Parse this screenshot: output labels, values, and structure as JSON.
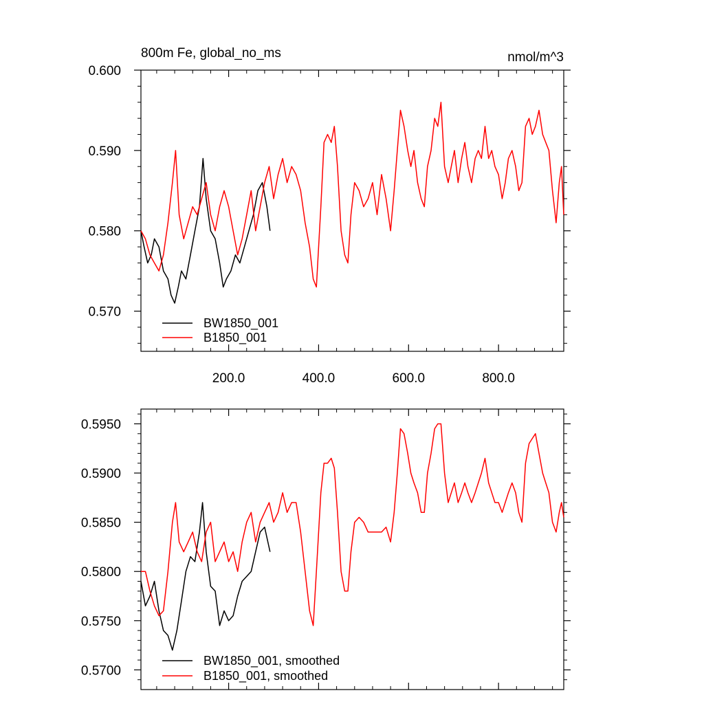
{
  "chart_data": [
    {
      "type": "line",
      "title": "800m Fe, global_no_ms",
      "units": "nmol/m^3",
      "xlim": [
        5,
        945
      ],
      "ylim": [
        0.565,
        0.6
      ],
      "xticks": [
        200,
        400,
        600,
        800
      ],
      "xtick_labels": [
        "200.0",
        "400.0",
        "600.0",
        "800.0"
      ],
      "yticks": [
        0.57,
        0.58,
        0.59,
        0.6
      ],
      "ytick_labels": [
        "0.570",
        "0.580",
        "0.590",
        "0.600"
      ],
      "grid": false,
      "legend_position": "bottom-left",
      "series": [
        {
          "name": "BW1850_001",
          "color": "#000000",
          "x": [
            5,
            12,
            20,
            28,
            35,
            45,
            55,
            65,
            72,
            80,
            88,
            95,
            105,
            115,
            125,
            135,
            143,
            150,
            160,
            170,
            180,
            188,
            195,
            205,
            215,
            225,
            235,
            245,
            255,
            265,
            275,
            285,
            292
          ],
          "values": [
            0.58,
            0.578,
            0.576,
            0.577,
            0.579,
            0.578,
            0.575,
            0.574,
            0.572,
            0.571,
            0.573,
            0.575,
            0.574,
            0.577,
            0.58,
            0.583,
            0.589,
            0.584,
            0.58,
            0.579,
            0.576,
            0.573,
            0.574,
            0.575,
            0.577,
            0.576,
            0.578,
            0.58,
            0.582,
            0.585,
            0.586,
            0.583,
            0.58
          ]
        },
        {
          "name": "B1850_001",
          "color": "#ff0000",
          "x": [
            5,
            15,
            25,
            35,
            45,
            55,
            65,
            75,
            82,
            90,
            100,
            110,
            120,
            130,
            140,
            150,
            160,
            170,
            180,
            190,
            200,
            210,
            220,
            230,
            240,
            250,
            260,
            270,
            280,
            290,
            300,
            310,
            320,
            330,
            340,
            350,
            360,
            370,
            380,
            388,
            395,
            405,
            412,
            420,
            428,
            435,
            442,
            450,
            458,
            465,
            472,
            480,
            490,
            500,
            510,
            520,
            530,
            540,
            550,
            560,
            568,
            575,
            582,
            590,
            598,
            605,
            612,
            620,
            628,
            635,
            642,
            650,
            658,
            665,
            672,
            680,
            688,
            695,
            702,
            710,
            718,
            725,
            732,
            740,
            748,
            755,
            762,
            770,
            778,
            785,
            792,
            800,
            808,
            815,
            822,
            830,
            838,
            845,
            852,
            860,
            868,
            875,
            882,
            890,
            898,
            905,
            912,
            920,
            928,
            935,
            940,
            945
          ],
          "values": [
            0.58,
            0.579,
            0.577,
            0.576,
            0.575,
            0.577,
            0.581,
            0.586,
            0.59,
            0.582,
            0.579,
            0.581,
            0.583,
            0.582,
            0.584,
            0.586,
            0.582,
            0.58,
            0.583,
            0.585,
            0.583,
            0.58,
            0.577,
            0.579,
            0.582,
            0.585,
            0.58,
            0.583,
            0.586,
            0.588,
            0.584,
            0.587,
            0.589,
            0.586,
            0.588,
            0.587,
            0.585,
            0.581,
            0.578,
            0.574,
            0.573,
            0.583,
            0.591,
            0.592,
            0.591,
            0.593,
            0.588,
            0.58,
            0.577,
            0.576,
            0.582,
            0.586,
            0.585,
            0.583,
            0.584,
            0.586,
            0.582,
            0.587,
            0.584,
            0.58,
            0.585,
            0.59,
            0.595,
            0.593,
            0.59,
            0.588,
            0.59,
            0.586,
            0.584,
            0.583,
            0.588,
            0.59,
            0.594,
            0.593,
            0.596,
            0.588,
            0.586,
            0.588,
            0.59,
            0.586,
            0.589,
            0.591,
            0.588,
            0.586,
            0.589,
            0.59,
            0.589,
            0.593,
            0.589,
            0.59,
            0.588,
            0.587,
            0.584,
            0.586,
            0.589,
            0.59,
            0.588,
            0.585,
            0.586,
            0.593,
            0.594,
            0.592,
            0.593,
            0.595,
            0.592,
            0.591,
            0.59,
            0.585,
            0.581,
            0.586,
            0.588,
            0.582
          ]
        }
      ]
    },
    {
      "type": "line",
      "xlim": [
        5,
        945
      ],
      "ylim": [
        0.568,
        0.5965
      ],
      "xticks": [
        200,
        400,
        600,
        800
      ],
      "yticks": [
        0.57,
        0.575,
        0.58,
        0.585,
        0.59,
        0.595
      ],
      "ytick_labels": [
        "0.5700",
        "0.5750",
        "0.5800",
        "0.5850",
        "0.5900",
        "0.5950"
      ],
      "grid": false,
      "legend_position": "bottom-left",
      "series": [
        {
          "name": "BW1850_001, smoothed",
          "color": "#000000",
          "x": [
            5,
            15,
            25,
            35,
            45,
            55,
            65,
            75,
            85,
            95,
            105,
            115,
            125,
            135,
            142,
            150,
            160,
            170,
            180,
            190,
            200,
            210,
            220,
            230,
            240,
            250,
            260,
            270,
            280,
            292
          ],
          "values": [
            0.579,
            0.5765,
            0.5775,
            0.579,
            0.576,
            0.574,
            0.5735,
            0.572,
            0.574,
            0.577,
            0.58,
            0.5815,
            0.581,
            0.584,
            0.587,
            0.582,
            0.5785,
            0.578,
            0.5745,
            0.576,
            0.575,
            0.5755,
            0.5775,
            0.579,
            0.5795,
            0.58,
            0.582,
            0.584,
            0.5845,
            0.582
          ]
        },
        {
          "name": "B1850_001, smoothed",
          "color": "#ff0000",
          "x": [
            5,
            15,
            25,
            35,
            45,
            55,
            65,
            75,
            82,
            90,
            100,
            110,
            120,
            130,
            140,
            150,
            160,
            170,
            180,
            190,
            200,
            210,
            220,
            230,
            240,
            250,
            260,
            270,
            280,
            290,
            300,
            310,
            320,
            330,
            340,
            350,
            360,
            370,
            380,
            388,
            395,
            405,
            412,
            420,
            428,
            435,
            442,
            450,
            458,
            465,
            472,
            480,
            490,
            500,
            510,
            520,
            530,
            540,
            550,
            560,
            568,
            575,
            582,
            590,
            598,
            605,
            612,
            620,
            628,
            635,
            642,
            650,
            658,
            665,
            672,
            680,
            688,
            695,
            702,
            710,
            718,
            725,
            732,
            740,
            748,
            755,
            762,
            770,
            778,
            785,
            792,
            800,
            808,
            815,
            822,
            830,
            838,
            845,
            852,
            860,
            868,
            875,
            882,
            890,
            898,
            905,
            912,
            920,
            928,
            935,
            940,
            945
          ],
          "values": [
            0.58,
            0.58,
            0.578,
            0.5765,
            0.5755,
            0.576,
            0.58,
            0.585,
            0.587,
            0.583,
            0.582,
            0.583,
            0.584,
            0.582,
            0.581,
            0.584,
            0.585,
            0.581,
            0.582,
            0.583,
            0.581,
            0.582,
            0.58,
            0.583,
            0.585,
            0.586,
            0.583,
            0.585,
            0.586,
            0.587,
            0.585,
            0.586,
            0.588,
            0.586,
            0.587,
            0.587,
            0.584,
            0.58,
            0.576,
            0.5745,
            0.58,
            0.588,
            0.591,
            0.591,
            0.5915,
            0.5905,
            0.586,
            0.58,
            0.578,
            0.578,
            0.582,
            0.585,
            0.5855,
            0.585,
            0.584,
            0.584,
            0.584,
            0.584,
            0.5845,
            0.583,
            0.586,
            0.59,
            0.5945,
            0.594,
            0.592,
            0.59,
            0.589,
            0.588,
            0.586,
            0.586,
            0.59,
            0.592,
            0.5945,
            0.595,
            0.595,
            0.59,
            0.587,
            0.588,
            0.589,
            0.587,
            0.588,
            0.589,
            0.588,
            0.587,
            0.588,
            0.589,
            0.59,
            0.5915,
            0.589,
            0.588,
            0.587,
            0.587,
            0.586,
            0.587,
            0.588,
            0.589,
            0.588,
            0.586,
            0.585,
            0.591,
            0.593,
            0.5935,
            0.594,
            0.592,
            0.59,
            0.589,
            0.588,
            0.585,
            0.584,
            0.586,
            0.587,
            0.5855
          ]
        }
      ]
    }
  ]
}
